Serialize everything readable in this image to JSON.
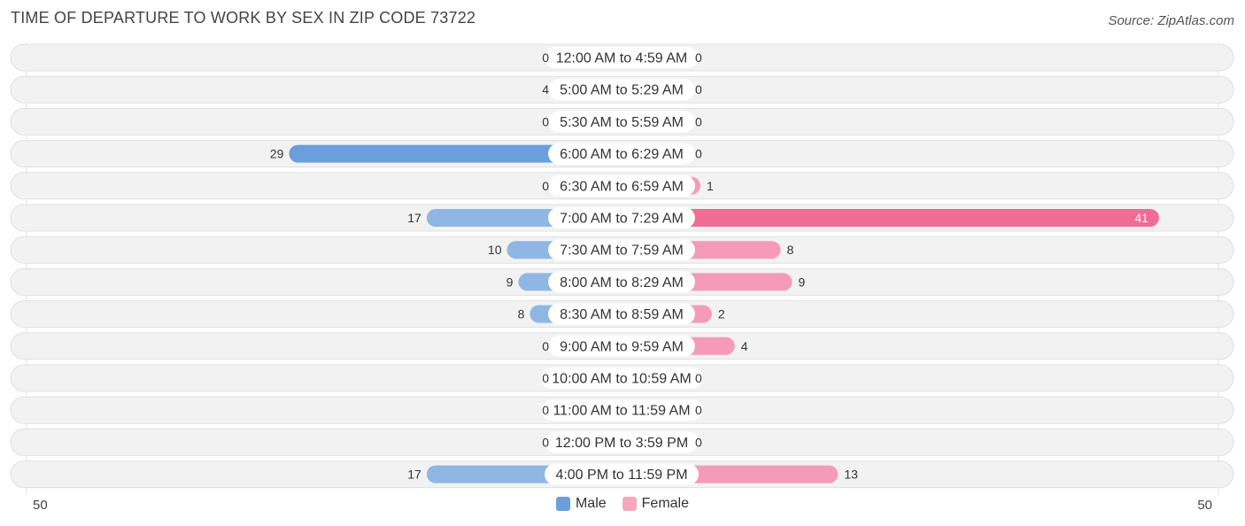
{
  "header": {
    "title": "TIME OF DEPARTURE TO WORK BY SEX IN ZIP CODE 73722",
    "source": "Source: ZipAtlas.com"
  },
  "colors": {
    "male_strong": "#6a9fdb",
    "male_light": "#a9c8ea",
    "female_strong": "#f06b95",
    "female_light": "#f6a7c0",
    "row_background": "#f2f2f2",
    "row_border": "#e0e0e0"
  },
  "chart_data": {
    "type": "bar",
    "title": "TIME OF DEPARTURE TO WORK BY SEX IN ZIP CODE 73722",
    "orientation": "horizontal-diverging",
    "categories": [
      "12:00 AM to 4:59 AM",
      "5:00 AM to 5:29 AM",
      "5:30 AM to 5:59 AM",
      "6:00 AM to 6:29 AM",
      "6:30 AM to 6:59 AM",
      "7:00 AM to 7:29 AM",
      "7:30 AM to 7:59 AM",
      "8:00 AM to 8:29 AM",
      "8:30 AM to 8:59 AM",
      "9:00 AM to 9:59 AM",
      "10:00 AM to 10:59 AM",
      "11:00 AM to 11:59 AM",
      "12:00 PM to 3:59 PM",
      "4:00 PM to 11:59 PM"
    ],
    "series": [
      {
        "name": "Male",
        "values": [
          0,
          4,
          0,
          29,
          0,
          17,
          10,
          9,
          8,
          0,
          0,
          0,
          0,
          17
        ],
        "labels": [
          "0",
          "4",
          "0",
          "29",
          "0",
          "17",
          "10",
          "9",
          "8",
          "0",
          "0",
          "0",
          "0",
          "17"
        ]
      },
      {
        "name": "Female",
        "values": [
          0,
          0,
          0,
          0,
          1,
          41,
          8,
          9,
          2,
          4,
          0,
          0,
          0,
          13
        ],
        "labels": [
          "0",
          "0",
          "0",
          "0",
          "1",
          "41",
          "8",
          "9",
          "2",
          "4",
          "0",
          "0",
          "0",
          "13"
        ]
      }
    ],
    "axis": {
      "min_label": "50",
      "max_label": "50",
      "max": 50
    },
    "legend": {
      "position": "bottom-center",
      "male_label": "Male",
      "female_label": "Female"
    }
  }
}
